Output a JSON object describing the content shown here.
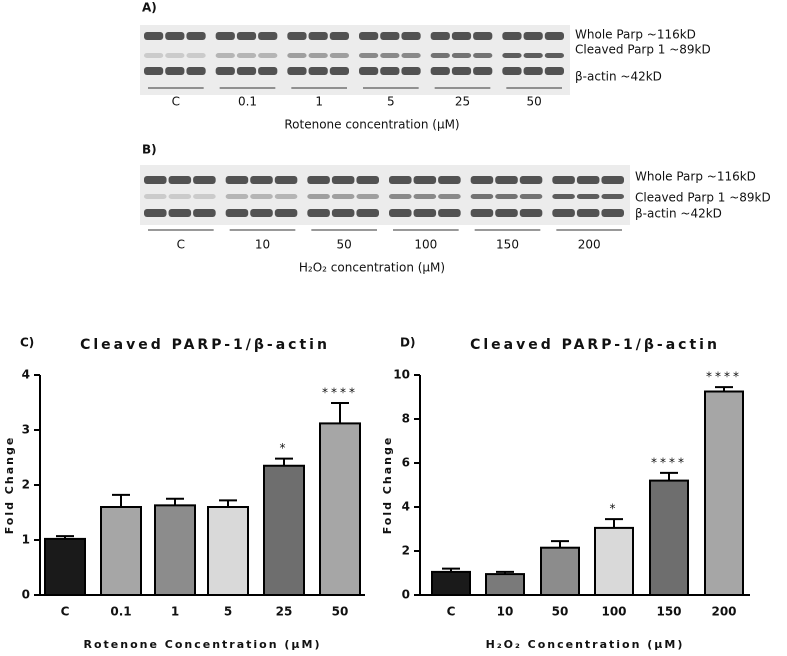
{
  "blots": [
    {
      "label": "A)",
      "bands": [
        "Whole Parp ~116kD",
        "Cleaved Parp 1 ~89kD",
        "β-actin ~42kD"
      ],
      "groups": [
        "C",
        "0.1",
        "1",
        "5",
        "25",
        "50"
      ],
      "xlabel": "Rotenone concentration (μM)"
    },
    {
      "label": "B)",
      "bands": [
        "Whole Parp ~116kD",
        "Cleaved Parp 1 ~89kD",
        "β-actin ~42kD"
      ],
      "groups": [
        "C",
        "10",
        "50",
        "100",
        "150",
        "200"
      ],
      "xlabel": "H₂O₂ concentration (μM)"
    }
  ],
  "chart_data": [
    {
      "type": "bar",
      "panel": "C)",
      "title": "Cleaved PARP-1/β-actin",
      "xlabel": "Rotenone Concentration (μM)",
      "ylabel": "Fold Change",
      "categories": [
        "C",
        "0.1",
        "1",
        "5",
        "25",
        "50"
      ],
      "values": [
        1.02,
        1.6,
        1.63,
        1.6,
        2.35,
        3.12
      ],
      "errors": [
        0.05,
        0.22,
        0.12,
        0.12,
        0.13,
        0.37
      ],
      "colors": [
        "#1a1a1a",
        "#a6a6a6",
        "#8c8c8c",
        "#d9d9d9",
        "#6e6e6e",
        "#a6a6a6"
      ],
      "significance": [
        null,
        null,
        null,
        null,
        "*",
        "****"
      ],
      "ylim": [
        0,
        4
      ],
      "yticks": [
        0,
        1,
        2,
        3,
        4
      ]
    },
    {
      "type": "bar",
      "panel": "D)",
      "title": "Cleaved PARP-1/β-actin",
      "xlabel": "H₂O₂ Concentration (μM)",
      "ylabel": "Fold Change",
      "categories": [
        "C",
        "10",
        "50",
        "100",
        "150",
        "200"
      ],
      "values": [
        1.05,
        0.95,
        2.15,
        3.05,
        5.2,
        9.25
      ],
      "errors": [
        0.15,
        0.1,
        0.3,
        0.4,
        0.35,
        0.2
      ],
      "colors": [
        "#1a1a1a",
        "#7a7a7a",
        "#8c8c8c",
        "#d9d9d9",
        "#6e6e6e",
        "#a6a6a6"
      ],
      "significance": [
        null,
        null,
        null,
        "*",
        "****",
        "****"
      ],
      "ylim": [
        0,
        10
      ],
      "yticks": [
        0,
        2,
        4,
        6,
        8,
        10
      ]
    }
  ]
}
